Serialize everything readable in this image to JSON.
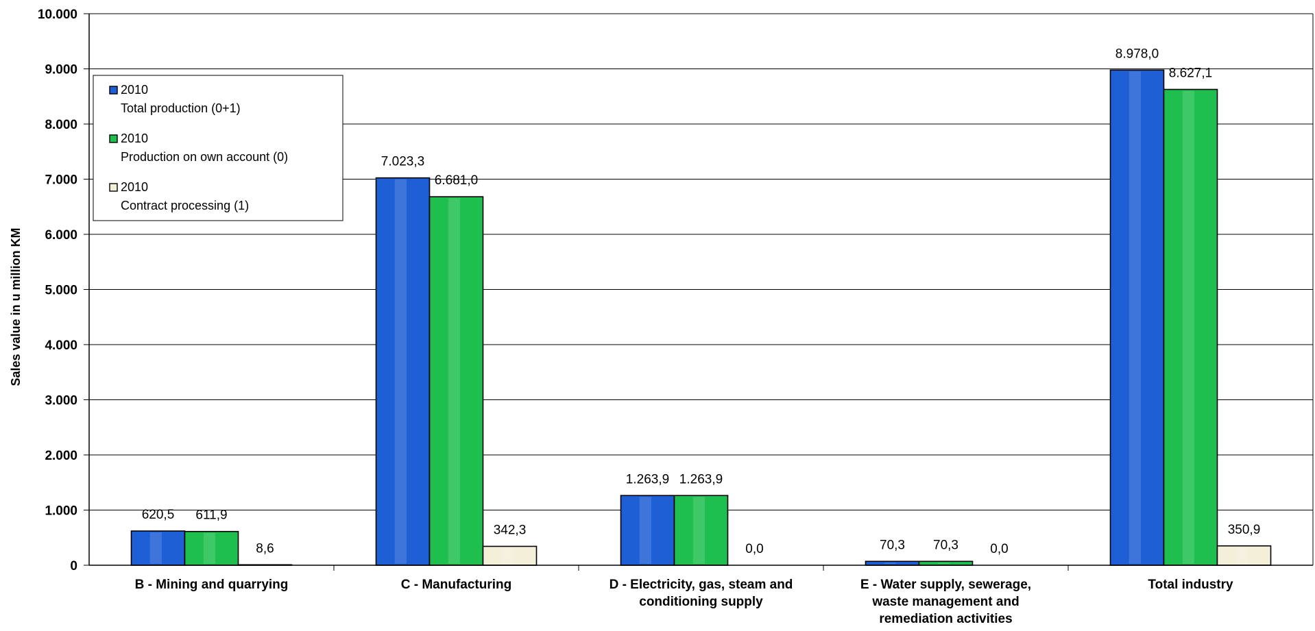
{
  "chart_data": {
    "type": "bar",
    "title": "",
    "ylabel": "Sales value in u million KM",
    "xlabel": "",
    "ylim": [
      0,
      10000
    ],
    "yticks": [
      0,
      1000,
      2000,
      3000,
      4000,
      5000,
      6000,
      7000,
      8000,
      9000,
      10000
    ],
    "ytick_labels": [
      "0",
      "1.000",
      "2.000",
      "3.000",
      "4.000",
      "5.000",
      "6.000",
      "7.000",
      "8.000",
      "9.000",
      "10.000"
    ],
    "grid": true,
    "legend_position": "top-left",
    "categories": [
      [
        "B - Mining and quarrying"
      ],
      [
        "C - Manufacturing"
      ],
      [
        "D - Electricity, gas, steam  and",
        "conditioning supply"
      ],
      [
        "E - Water supply, sewerage,",
        "waste management and",
        "remediation activities"
      ],
      [
        "Total industry"
      ]
    ],
    "series": [
      {
        "name": "2010",
        "name_line2": "Total production (0+1)",
        "color": "#1f5fd6",
        "values": [
          620.5,
          7023.3,
          1263.9,
          70.3,
          8978.0
        ],
        "labels": [
          "620,5",
          "7.023,3",
          "1.263,9",
          "70,3",
          "8.978,0"
        ]
      },
      {
        "name": "2010",
        "name_line2": "Production on own account (0)",
        "color": "#1fbf4f",
        "values": [
          611.9,
          6681.0,
          1263.9,
          70.3,
          8627.1
        ],
        "labels": [
          "611,9",
          "6.681,0",
          "1.263,9",
          "70,3",
          "8.627,1"
        ]
      },
      {
        "name": "2010",
        "name_line2": "Contract processing (1)",
        "color": "#f3efd9",
        "values": [
          8.6,
          342.3,
          0.0,
          0.0,
          350.9
        ],
        "labels": [
          "8,6",
          "342,3",
          "0,0",
          "0,0",
          "350,9"
        ]
      }
    ]
  }
}
